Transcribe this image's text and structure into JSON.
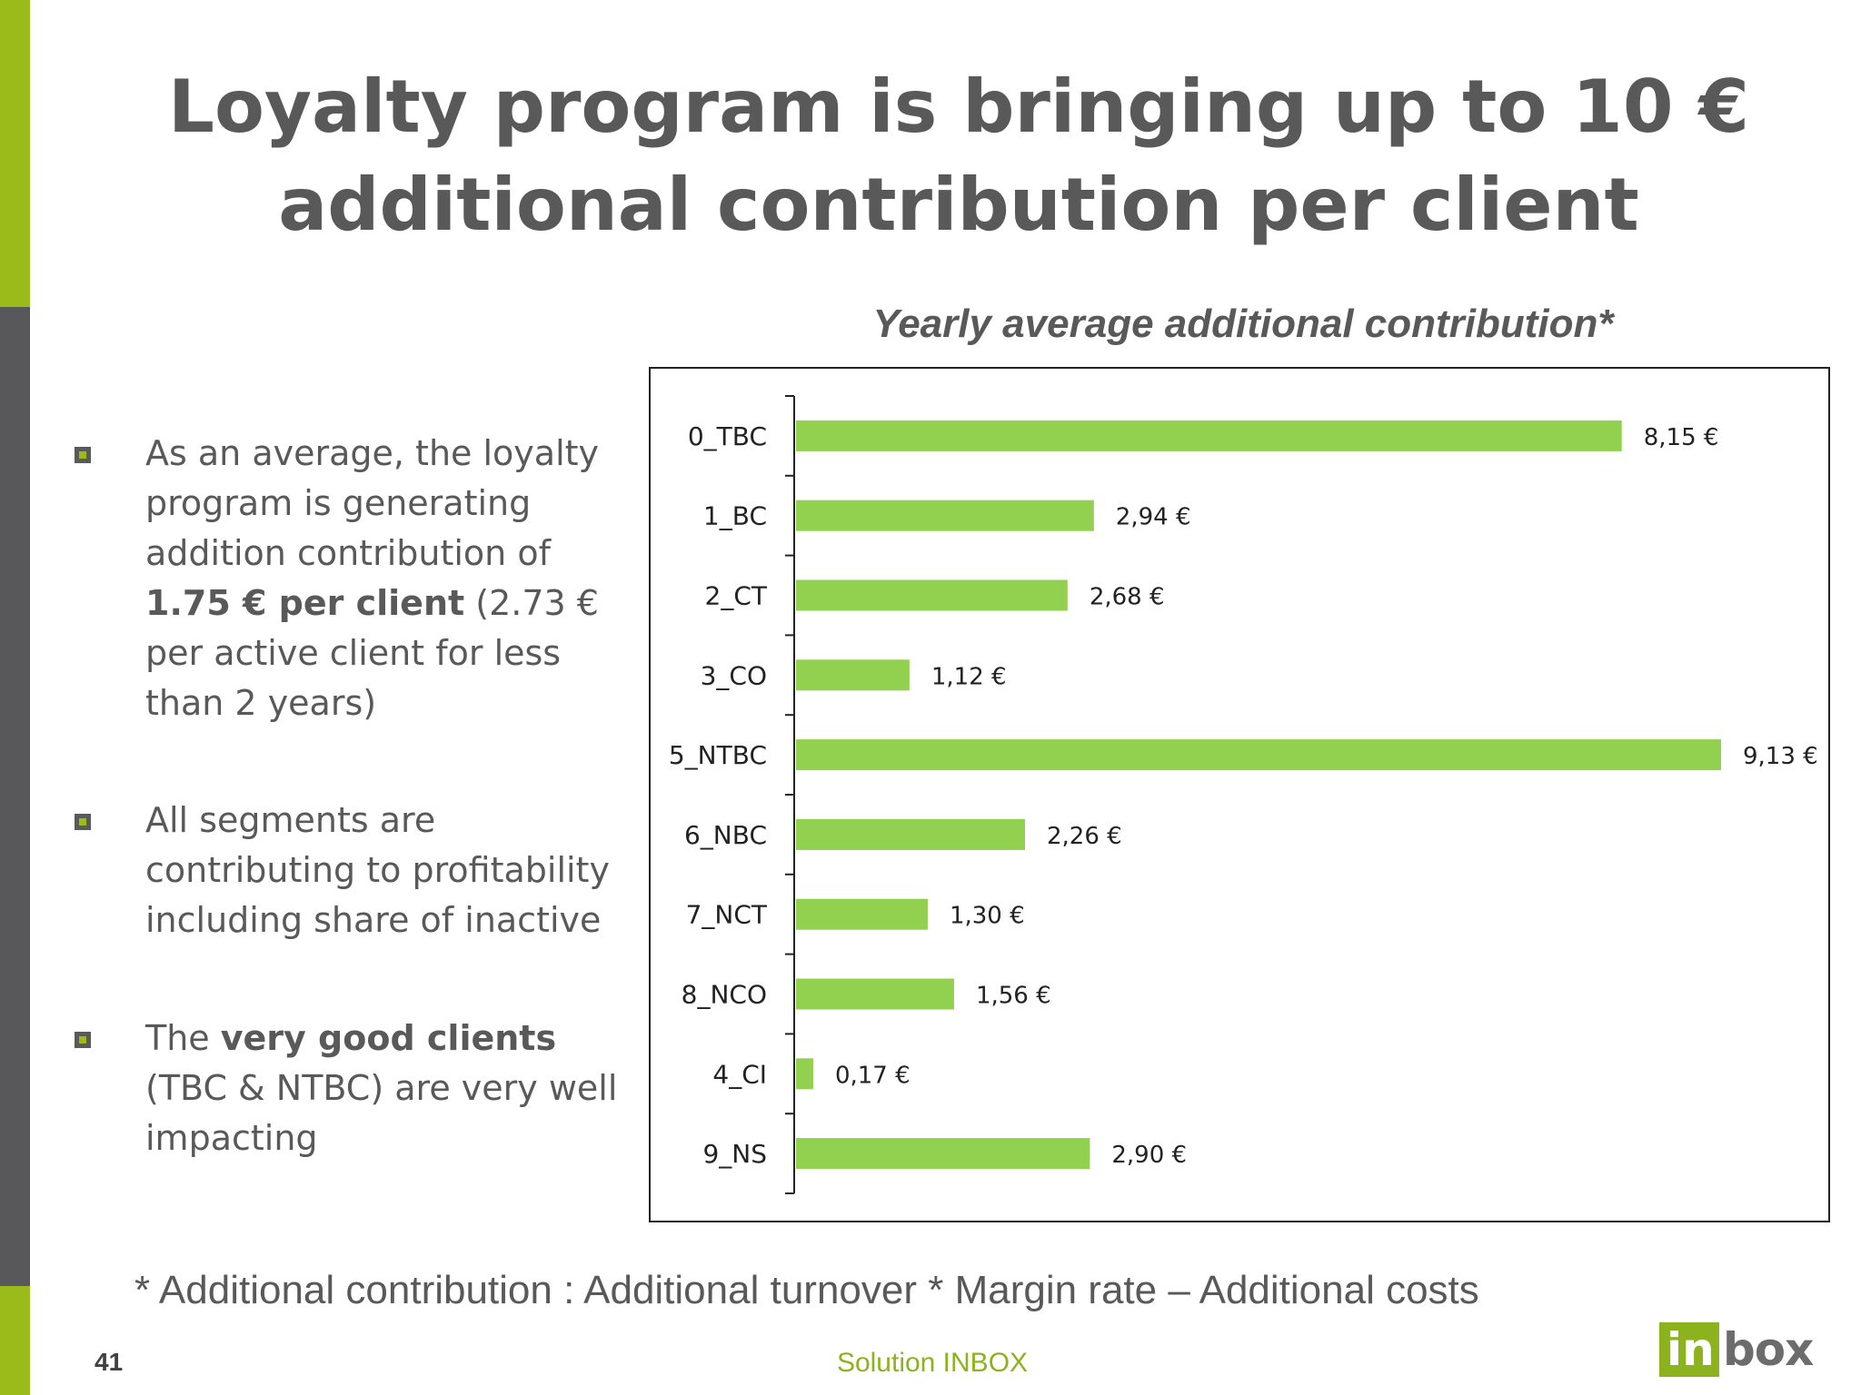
{
  "slide": {
    "title_lines": [
      "Loyalty program is bringing up to 10 €",
      "additional contribution per client"
    ],
    "chart_title": "Yearly average additional contribution*",
    "footnote": "* Additional contribution : Additional turnover * Margin rate – Additional costs",
    "page_number": "41",
    "footer_center": "Solution INBOX",
    "logo": {
      "part1": "in",
      "part2": "box"
    }
  },
  "bullets": [
    {
      "segments": [
        {
          "text": "As an average, the loyalty program is generating addition contribution of ",
          "bold": false
        },
        {
          "text": "1.75 € per client",
          "bold": true
        },
        {
          "text": " (2.73 € per active client for less than 2 years)",
          "bold": false
        }
      ]
    },
    {
      "segments": [
        {
          "text": "All segments are contributing to profitability including share of inactive",
          "bold": false
        }
      ]
    },
    {
      "segments": [
        {
          "text": "The ",
          "bold": false
        },
        {
          "text": "very good clients",
          "bold": true
        },
        {
          "text": " (TBC & NTBC) are very well impacting",
          "bold": false
        }
      ]
    }
  ],
  "colors": {
    "bar": "#92d050",
    "accent_green": "#9bbb1a",
    "sidebar_gray": "#58585a",
    "text_gray": "#595959",
    "footer_green": "#8cb31e"
  },
  "chart_data": {
    "type": "bar",
    "orientation": "horizontal",
    "title": "Yearly average additional contribution*",
    "categories": [
      "0_TBC",
      "1_BC",
      "2_CT",
      "3_CO",
      "5_NTBC",
      "6_NBC",
      "7_NCT",
      "8_NCO",
      "4_CI",
      "9_NS"
    ],
    "values": [
      8.15,
      2.94,
      2.68,
      1.12,
      9.13,
      2.26,
      1.3,
      1.56,
      0.17,
      2.9
    ],
    "data_labels": [
      "8,15 €",
      "2,94 €",
      "2,68 €",
      "1,12 €",
      "9,13 €",
      "2,26 €",
      "1,30 €",
      "1,56 €",
      "0,17 €",
      "2,90 €"
    ],
    "xlim": [
      0,
      10
    ],
    "grid": false,
    "legend": "none"
  }
}
